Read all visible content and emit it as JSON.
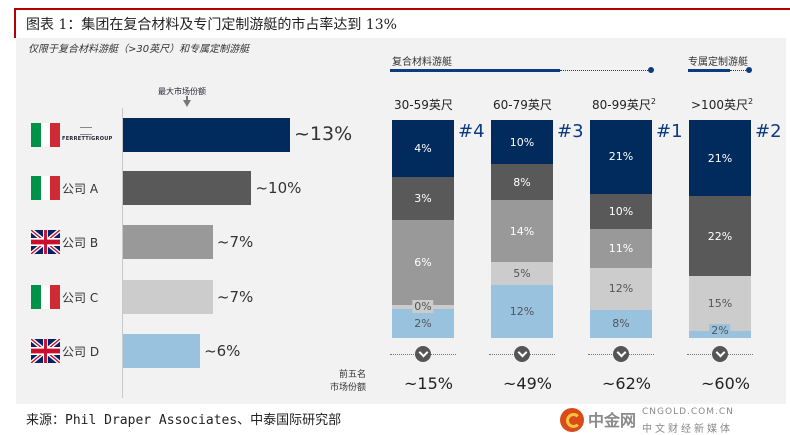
{
  "title": "图表 1：集团在复合材料及专门定制游艇的市占率达到 13%",
  "subtitle": "仅限于复合材料游艇（>30英尺）和专属定制游艇",
  "source": "来源：Phil Draper Associates、中泰国际研究部",
  "colors": {
    "navy": "#002b5c",
    "dark_gray": "#595959",
    "mid_gray": "#999999",
    "light_gray": "#cccccc",
    "light_blue": "#99c2de",
    "accent_red": "#b30000",
    "rank_blue": "#0d3a80"
  },
  "watermark": {
    "brand": "中金网",
    "url": "CNGOLD.COM.CN",
    "tagline": "中文财经新媒体"
  },
  "chart_data": [
    {
      "type": "bar",
      "orientation": "horizontal",
      "title": "",
      "annotation": "最大市场份额",
      "categories": [
        "FERRETTIGROUP",
        "公司 A",
        "公司 B",
        "公司 C",
        "公司 D"
      ],
      "countries": [
        "italy",
        "italy",
        "uk",
        "italy",
        "uk"
      ],
      "values": [
        13,
        10,
        7,
        7,
        6
      ],
      "value_labels": [
        "~13%",
        "~10%",
        "~7%",
        "~7%",
        "~6%"
      ],
      "unit": "%",
      "xlim": [
        0,
        14
      ],
      "grid": false
    },
    {
      "type": "bar",
      "stacked": true,
      "title": "",
      "group_headers": [
        {
          "label": "复合材料游艇",
          "columns": [
            0,
            1,
            2
          ]
        },
        {
          "label": "专属定制游艇",
          "columns": [
            3
          ]
        }
      ],
      "categories": [
        "30-59英尺",
        "60-79英尺",
        "80-99英尺",
        ">100英尺"
      ],
      "category_superscripts": [
        "",
        "",
        "2",
        "2"
      ],
      "ranks": [
        "#4",
        "#3",
        "#1",
        "#2"
      ],
      "series": [
        {
          "name": "FERRETTIGROUP",
          "color_key": "navy",
          "values": [
            4,
            10,
            21,
            21
          ]
        },
        {
          "name": "公司 A",
          "color_key": "dark_gray",
          "values": [
            3,
            8,
            10,
            22
          ]
        },
        {
          "name": "公司 B",
          "color_key": "mid_gray",
          "values": [
            6,
            14,
            11,
            0
          ]
        },
        {
          "name": "公司 C",
          "color_key": "light_gray",
          "values": [
            0,
            5,
            12,
            15
          ]
        },
        {
          "name": "公司 D",
          "color_key": "light_blue",
          "values": [
            2,
            12,
            8,
            2
          ]
        }
      ],
      "totals_label": "前五名市场份额",
      "totals_label_lines": [
        "前五名",
        "市场份额"
      ],
      "totals": [
        "~15%",
        "~49%",
        "~62%",
        "~60%"
      ],
      "unit": "%",
      "grid": false
    }
  ]
}
